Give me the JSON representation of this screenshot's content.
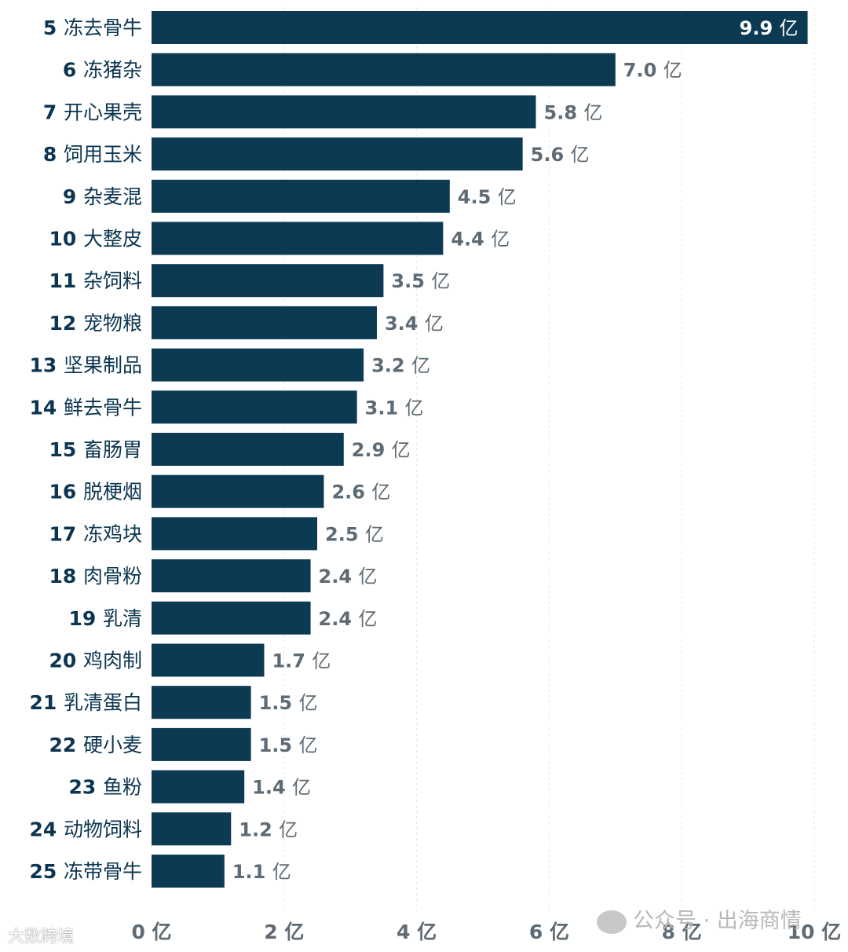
{
  "chart_data": {
    "type": "bar",
    "orientation": "horizontal",
    "categories": [
      {
        "rank": "5",
        "name": "冻去骨牛"
      },
      {
        "rank": "6",
        "name": "冻猪杂"
      },
      {
        "rank": "7",
        "name": "开心果壳"
      },
      {
        "rank": "8",
        "name": "饲用玉米"
      },
      {
        "rank": "9",
        "name": "杂麦混"
      },
      {
        "rank": "10",
        "name": "大整皮"
      },
      {
        "rank": "11",
        "name": "杂饲料"
      },
      {
        "rank": "12",
        "name": "宠物粮"
      },
      {
        "rank": "13",
        "name": "坚果制品"
      },
      {
        "rank": "14",
        "name": "鲜去骨牛"
      },
      {
        "rank": "15",
        "name": "畜肠胃"
      },
      {
        "rank": "16",
        "name": "脱梗烟"
      },
      {
        "rank": "17",
        "name": "冻鸡块"
      },
      {
        "rank": "18",
        "name": "肉骨粉"
      },
      {
        "rank": "19",
        "name": "乳清"
      },
      {
        "rank": "20",
        "name": "鸡肉制"
      },
      {
        "rank": "21",
        "name": "乳清蛋白"
      },
      {
        "rank": "22",
        "name": "硬小麦"
      },
      {
        "rank": "23",
        "name": "鱼粉"
      },
      {
        "rank": "24",
        "name": "动物饲料"
      },
      {
        "rank": "25",
        "name": "冻带骨牛"
      }
    ],
    "values": [
      9.9,
      7.0,
      5.8,
      5.6,
      4.5,
      4.4,
      3.5,
      3.4,
      3.2,
      3.1,
      2.9,
      2.6,
      2.5,
      2.4,
      2.4,
      1.7,
      1.5,
      1.5,
      1.4,
      1.2,
      1.1
    ],
    "value_labels": [
      "9.9",
      "7.0",
      "5.8",
      "5.6",
      "4.5",
      "4.4",
      "3.5",
      "3.4",
      "3.2",
      "3.1",
      "2.9",
      "2.6",
      "2.5",
      "2.4",
      "2.4",
      "1.7",
      "1.5",
      "1.5",
      "1.4",
      "1.2",
      "1.1"
    ],
    "unit": "亿",
    "xlim": [
      0,
      10
    ],
    "xticks": [
      0,
      2,
      4,
      6,
      8,
      10
    ],
    "xtick_labels": [
      "0 亿",
      "2 亿",
      "4 亿",
      "6 亿",
      "8 亿",
      "10 亿"
    ],
    "title": "",
    "xlabel": "",
    "ylabel": "",
    "grid": true,
    "legend": "none",
    "colors": {
      "bar": "#0b3a52",
      "category_text": "#0b3550",
      "value_text_outside": "#5f6b74",
      "value_text_inside": "#ffffff",
      "tick_text": "#5f6b74"
    }
  },
  "watermarks": {
    "left": "大数跨境",
    "right": "公众号 · 出海商情"
  }
}
